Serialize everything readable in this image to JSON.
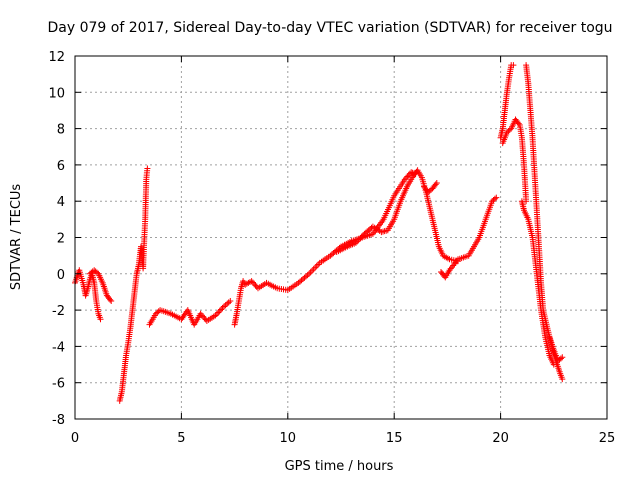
{
  "chart_data": {
    "type": "scatter",
    "title": "Day 079 of 2017, Sidereal Day-to-day VTEC variation (SDTVAR) for receiver togu",
    "xlabel": "GPS time / hours",
    "ylabel": "SDTVAR / TECUs",
    "xlim": [
      0,
      25
    ],
    "ylim": [
      -8,
      12
    ],
    "xticks": [
      0,
      5,
      10,
      15,
      20,
      25
    ],
    "yticks": [
      -8,
      -6,
      -4,
      -2,
      0,
      2,
      4,
      6,
      8,
      10,
      12
    ],
    "grid": true,
    "marker": "+",
    "series": [
      {
        "name": "SDTVAR",
        "color": "#ff0000",
        "segments": [
          [
            [
              0.0,
              -0.5
            ],
            [
              0.2,
              0.2
            ],
            [
              0.4,
              -0.6
            ],
            [
              0.5,
              -1.2
            ],
            [
              0.6,
              -0.8
            ],
            [
              0.7,
              -0.3
            ],
            [
              0.8,
              0.0
            ],
            [
              0.9,
              -0.5
            ],
            [
              1.0,
              -1.5
            ],
            [
              1.1,
              -2.2
            ],
            [
              1.2,
              -2.5
            ]
          ],
          [
            [
              0.7,
              0.0
            ],
            [
              0.9,
              0.2
            ],
            [
              1.1,
              0.0
            ],
            [
              1.3,
              -0.5
            ],
            [
              1.5,
              -1.2
            ],
            [
              1.7,
              -1.5
            ]
          ],
          [
            [
              2.1,
              -7.0
            ],
            [
              2.2,
              -6.5
            ],
            [
              2.3,
              -5.5
            ],
            [
              2.4,
              -4.5
            ],
            [
              2.5,
              -3.8
            ],
            [
              2.6,
              -3.0
            ],
            [
              2.7,
              -2.0
            ],
            [
              2.8,
              -1.0
            ],
            [
              2.9,
              0.0
            ],
            [
              3.0,
              0.5
            ],
            [
              3.1,
              1.5
            ],
            [
              3.15,
              1.0
            ],
            [
              3.2,
              0.3
            ],
            [
              3.25,
              1.8
            ],
            [
              3.3,
              3.0
            ],
            [
              3.35,
              5.2
            ],
            [
              3.4,
              5.8
            ]
          ],
          [
            [
              3.5,
              -2.8
            ],
            [
              3.8,
              -2.2
            ],
            [
              4.0,
              -2.0
            ],
            [
              4.5,
              -2.2
            ],
            [
              5.0,
              -2.5
            ],
            [
              5.3,
              -2.0
            ],
            [
              5.6,
              -2.8
            ],
            [
              5.9,
              -2.2
            ],
            [
              6.2,
              -2.6
            ],
            [
              6.6,
              -2.3
            ],
            [
              7.0,
              -1.8
            ],
            [
              7.3,
              -1.5
            ]
          ],
          [
            [
              7.5,
              -2.8
            ],
            [
              7.6,
              -2.2
            ],
            [
              7.7,
              -1.5
            ],
            [
              7.8,
              -0.8
            ],
            [
              7.9,
              -0.4
            ],
            [
              8.0,
              -0.6
            ],
            [
              8.3,
              -0.4
            ],
            [
              8.6,
              -0.8
            ],
            [
              9.0,
              -0.5
            ],
            [
              9.5,
              -0.8
            ],
            [
              10.0,
              -0.9
            ],
            [
              10.5,
              -0.5
            ],
            [
              11.0,
              0.0
            ],
            [
              11.5,
              0.6
            ],
            [
              12.0,
              1.0
            ],
            [
              12.5,
              1.5
            ],
            [
              13.0,
              1.8
            ],
            [
              13.5,
              2.0
            ],
            [
              14.0,
              2.2
            ],
            [
              14.5,
              3.0
            ],
            [
              15.0,
              4.3
            ],
            [
              15.5,
              5.2
            ],
            [
              15.8,
              5.6
            ],
            [
              16.0,
              5.5
            ]
          ],
          [
            [
              12.3,
              1.2
            ],
            [
              12.8,
              1.5
            ],
            [
              13.2,
              1.7
            ],
            [
              13.6,
              2.2
            ],
            [
              14.0,
              2.6
            ],
            [
              14.4,
              2.3
            ],
            [
              14.7,
              2.4
            ],
            [
              15.0,
              3.0
            ],
            [
              15.3,
              4.0
            ],
            [
              15.6,
              4.8
            ],
            [
              15.9,
              5.4
            ],
            [
              16.1,
              5.7
            ],
            [
              16.3,
              5.3
            ],
            [
              16.5,
              4.5
            ],
            [
              16.7,
              3.5
            ],
            [
              16.9,
              2.5
            ],
            [
              17.1,
              1.5
            ],
            [
              17.3,
              1.0
            ],
            [
              17.6,
              0.8
            ],
            [
              18.0,
              0.7
            ]
          ],
          [
            [
              16.4,
              4.8
            ],
            [
              16.6,
              4.5
            ],
            [
              16.8,
              4.7
            ],
            [
              17.0,
              5.0
            ]
          ],
          [
            [
              17.2,
              0.1
            ],
            [
              17.4,
              -0.2
            ],
            [
              17.6,
              0.2
            ],
            [
              18.0,
              0.8
            ],
            [
              18.5,
              1.0
            ],
            [
              19.0,
              2.0
            ],
            [
              19.3,
              3.0
            ],
            [
              19.6,
              4.0
            ],
            [
              19.8,
              4.2
            ]
          ],
          [
            [
              20.0,
              7.5
            ],
            [
              20.1,
              8.0
            ],
            [
              20.2,
              9.0
            ],
            [
              20.3,
              10.0
            ],
            [
              20.4,
              10.8
            ],
            [
              20.5,
              11.5
            ],
            [
              20.6,
              11.5
            ]
          ],
          [
            [
              20.1,
              7.2
            ],
            [
              20.3,
              7.8
            ],
            [
              20.5,
              8.0
            ],
            [
              20.7,
              8.5
            ],
            [
              20.9,
              8.2
            ],
            [
              21.0,
              7.5
            ],
            [
              21.1,
              6.0
            ],
            [
              21.2,
              4.0
            ]
          ],
          [
            [
              21.0,
              4.0
            ],
            [
              21.1,
              3.5
            ],
            [
              21.3,
              3.0
            ],
            [
              21.5,
              2.0
            ],
            [
              21.7,
              0.0
            ],
            [
              21.9,
              -2.0
            ],
            [
              22.1,
              -3.5
            ],
            [
              22.3,
              -4.5
            ],
            [
              22.5,
              -5.0
            ]
          ],
          [
            [
              21.2,
              11.5
            ],
            [
              21.3,
              10.5
            ],
            [
              21.4,
              9.0
            ],
            [
              21.5,
              7.5
            ],
            [
              21.6,
              5.5
            ],
            [
              21.7,
              3.5
            ],
            [
              21.8,
              1.5
            ],
            [
              21.9,
              -0.5
            ],
            [
              22.0,
              -2.0
            ],
            [
              22.2,
              -3.0
            ],
            [
              22.4,
              -4.0
            ],
            [
              22.6,
              -4.8
            ],
            [
              22.8,
              -5.5
            ],
            [
              22.9,
              -5.8
            ]
          ],
          [
            [
              22.3,
              -3.5
            ],
            [
              22.5,
              -4.2
            ],
            [
              22.7,
              -4.8
            ],
            [
              22.9,
              -4.6
            ]
          ]
        ]
      }
    ]
  }
}
